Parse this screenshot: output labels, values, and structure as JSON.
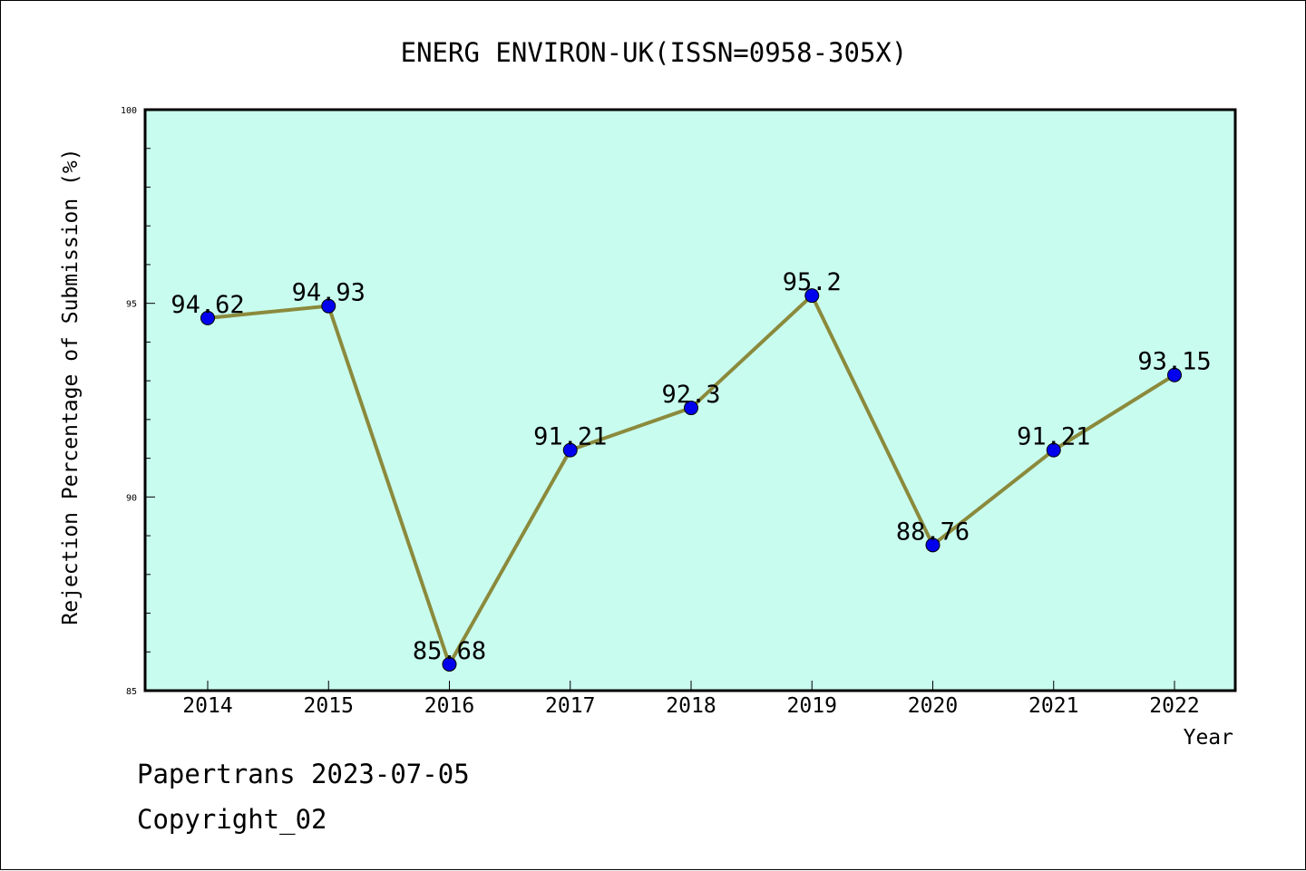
{
  "chart_data": {
    "type": "line",
    "title": "ENERG ENVIRON-UK(ISSN=0958-305X)",
    "xlabel": "Year",
    "ylabel": "Rejection Percentage of Submission (%)",
    "categories": [
      "2014",
      "2015",
      "2016",
      "2017",
      "2018",
      "2019",
      "2020",
      "2021",
      "2022"
    ],
    "values": [
      94.62,
      94.93,
      85.68,
      91.21,
      92.3,
      95.2,
      88.76,
      91.21,
      93.15
    ],
    "data_labels": [
      "94.62",
      "94.93",
      "85.68",
      "91.21",
      "92.3",
      "95.2",
      "88.76",
      "91.21",
      "93.15"
    ],
    "ylim": [
      85,
      100
    ],
    "y_major_ticks": [
      85,
      90,
      95,
      100
    ],
    "y_minor_step": 1,
    "grid": false,
    "colors": {
      "plot_background": "#c8fcef",
      "line": "#8b8a3c",
      "marker": "#0000ee",
      "axes": "#000000"
    }
  },
  "footer": {
    "line1": "Papertrans 2023-07-05",
    "line2": "Copyright_02"
  }
}
